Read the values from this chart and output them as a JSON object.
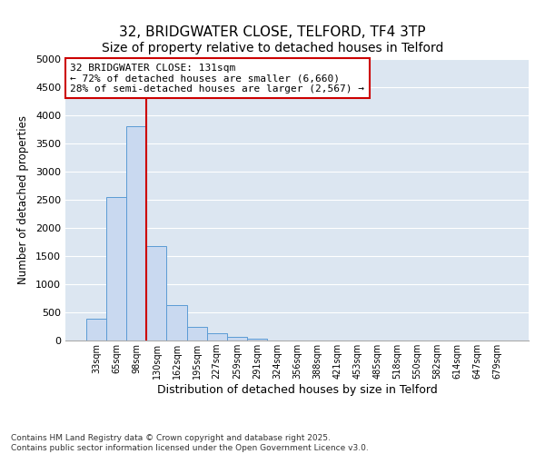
{
  "title1": "32, BRIDGWATER CLOSE, TELFORD, TF4 3TP",
  "title2": "Size of property relative to detached houses in Telford",
  "xlabel": "Distribution of detached houses by size in Telford",
  "ylabel": "Number of detached properties",
  "categories": [
    "33sqm",
    "65sqm",
    "98sqm",
    "130sqm",
    "162sqm",
    "195sqm",
    "227sqm",
    "259sqm",
    "291sqm",
    "324sqm",
    "356sqm",
    "388sqm",
    "421sqm",
    "453sqm",
    "485sqm",
    "518sqm",
    "550sqm",
    "582sqm",
    "614sqm",
    "647sqm",
    "679sqm"
  ],
  "values": [
    390,
    2550,
    3800,
    1680,
    630,
    250,
    130,
    70,
    40,
    0,
    0,
    0,
    0,
    0,
    0,
    0,
    0,
    0,
    0,
    0,
    0
  ],
  "bar_color": "#c9d9f0",
  "bar_edge_color": "#5b9bd5",
  "vline_color": "#cc0000",
  "vline_x": 3,
  "annotation_text": "32 BRIDGWATER CLOSE: 131sqm\n← 72% of detached houses are smaller (6,660)\n28% of semi-detached houses are larger (2,567) →",
  "annotation_box_color": "#cc0000",
  "ylim": [
    0,
    5000
  ],
  "yticks": [
    0,
    500,
    1000,
    1500,
    2000,
    2500,
    3000,
    3500,
    4000,
    4500,
    5000
  ],
  "grid_color": "#ffffff",
  "plot_bg_color": "#dce6f1",
  "fig_bg_color": "#ffffff",
  "footer_text": "Contains HM Land Registry data © Crown copyright and database right 2025.\nContains public sector information licensed under the Open Government Licence v3.0.",
  "title1_fontsize": 11,
  "title2_fontsize": 10,
  "xlabel_fontsize": 9,
  "ylabel_fontsize": 8.5,
  "ytick_fontsize": 8,
  "xtick_fontsize": 7,
  "annot_fontsize": 8,
  "footer_fontsize": 6.5
}
